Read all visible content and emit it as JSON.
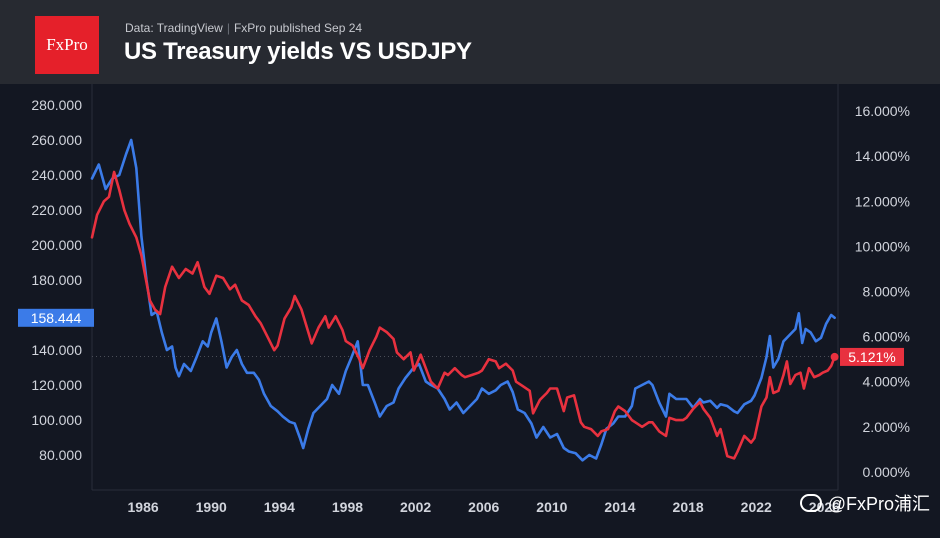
{
  "header": {
    "logo": "FxPro",
    "source": "Data: TradingView",
    "separator": "|",
    "published": "FxPro published Sep 24",
    "title": "US Treasury yields VS USDJPY"
  },
  "watermark": "@FxPro浦汇",
  "colors": {
    "usdjpy": "#3b7be8",
    "yield": "#e8313f",
    "bg": "#131722",
    "header": "#272a31"
  },
  "chart_data": {
    "type": "line",
    "title": "US Treasury yields VS USDJPY",
    "x_tick_labels": [
      "1986",
      "1990",
      "1994",
      "1998",
      "2002",
      "2006",
      "2010",
      "2014",
      "2018",
      "2022",
      "2026"
    ],
    "xlim": [
      1983.0,
      2026.8
    ],
    "left_axis": {
      "ticks": [
        80,
        100,
        120,
        140,
        160,
        180,
        200,
        220,
        240,
        260,
        280
      ],
      "tick_labels": [
        "80.000",
        "100.000",
        "120.000",
        "140.000",
        "160.000",
        "180.000",
        "200.000",
        "220.000",
        "240.000",
        "260.000",
        "280.000"
      ],
      "ylim": [
        60,
        292
      ]
    },
    "right_axis": {
      "ticks": [
        0,
        2,
        4,
        6,
        8,
        10,
        12,
        14,
        16
      ],
      "tick_labels": [
        "0.000%",
        "2.000%",
        "4.000%",
        "6.000%",
        "8.000%",
        "10.000%",
        "12.000%",
        "14.000%",
        "16.000%"
      ],
      "ylim": [
        -0.8,
        17.2
      ]
    },
    "series": [
      {
        "name": "",
        "axis": "left",
        "color": "#3b7be8",
        "last_value_label": "158.444",
        "points": [
          [
            1983.0,
            238
          ],
          [
            1983.4,
            246
          ],
          [
            1983.8,
            232
          ],
          [
            1984.2,
            238
          ],
          [
            1984.6,
            240
          ],
          [
            1985.0,
            252
          ],
          [
            1985.3,
            260
          ],
          [
            1985.6,
            244
          ],
          [
            1985.9,
            205
          ],
          [
            1986.2,
            180
          ],
          [
            1986.5,
            160
          ],
          [
            1986.8,
            162
          ],
          [
            1987.1,
            150
          ],
          [
            1987.4,
            140
          ],
          [
            1987.7,
            142
          ],
          [
            1987.9,
            130
          ],
          [
            1988.1,
            125
          ],
          [
            1988.4,
            132
          ],
          [
            1988.8,
            128
          ],
          [
            1989.1,
            135
          ],
          [
            1989.5,
            145
          ],
          [
            1989.8,
            142
          ],
          [
            1990.0,
            150
          ],
          [
            1990.3,
            158
          ],
          [
            1990.6,
            145
          ],
          [
            1990.9,
            130
          ],
          [
            1991.2,
            136
          ],
          [
            1991.5,
            140
          ],
          [
            1991.8,
            132
          ],
          [
            1992.1,
            127
          ],
          [
            1992.5,
            127
          ],
          [
            1992.8,
            123
          ],
          [
            1993.1,
            115
          ],
          [
            1993.5,
            108
          ],
          [
            1993.9,
            105
          ],
          [
            1994.2,
            102
          ],
          [
            1994.6,
            99
          ],
          [
            1994.9,
            98
          ],
          [
            1995.2,
            90
          ],
          [
            1995.4,
            84
          ],
          [
            1995.7,
            95
          ],
          [
            1996.0,
            104
          ],
          [
            1996.4,
            108
          ],
          [
            1996.8,
            112
          ],
          [
            1997.1,
            120
          ],
          [
            1997.5,
            115
          ],
          [
            1997.9,
            128
          ],
          [
            1998.2,
            135
          ],
          [
            1998.6,
            145
          ],
          [
            1998.9,
            120
          ],
          [
            1999.2,
            120
          ],
          [
            1999.6,
            110
          ],
          [
            1999.9,
            102
          ],
          [
            2000.3,
            108
          ],
          [
            2000.7,
            110
          ],
          [
            2001.0,
            118
          ],
          [
            2001.4,
            124
          ],
          [
            2001.9,
            130
          ],
          [
            2002.2,
            132
          ],
          [
            2002.6,
            122
          ],
          [
            2002.9,
            120
          ],
          [
            2003.3,
            118
          ],
          [
            2003.7,
            112
          ],
          [
            2004.0,
            106
          ],
          [
            2004.4,
            110
          ],
          [
            2004.8,
            104
          ],
          [
            2005.2,
            108
          ],
          [
            2005.6,
            112
          ],
          [
            2005.9,
            118
          ],
          [
            2006.3,
            115
          ],
          [
            2006.7,
            117
          ],
          [
            2007.0,
            120
          ],
          [
            2007.4,
            122
          ],
          [
            2007.7,
            116
          ],
          [
            2008.0,
            106
          ],
          [
            2008.4,
            104
          ],
          [
            2008.8,
            98
          ],
          [
            2009.1,
            90
          ],
          [
            2009.5,
            96
          ],
          [
            2009.9,
            90
          ],
          [
            2010.3,
            92
          ],
          [
            2010.7,
            84
          ],
          [
            2011.0,
            82
          ],
          [
            2011.4,
            81
          ],
          [
            2011.8,
            77
          ],
          [
            2012.2,
            80
          ],
          [
            2012.6,
            78
          ],
          [
            2012.9,
            86
          ],
          [
            2013.2,
            95
          ],
          [
            2013.6,
            98
          ],
          [
            2013.9,
            102
          ],
          [
            2014.3,
            102
          ],
          [
            2014.7,
            108
          ],
          [
            2014.9,
            118
          ],
          [
            2015.3,
            120
          ],
          [
            2015.7,
            122
          ],
          [
            2015.9,
            120
          ],
          [
            2016.3,
            110
          ],
          [
            2016.7,
            102
          ],
          [
            2016.9,
            115
          ],
          [
            2017.3,
            112
          ],
          [
            2017.7,
            112
          ],
          [
            2017.9,
            112
          ],
          [
            2018.3,
            107
          ],
          [
            2018.7,
            112
          ],
          [
            2018.9,
            110
          ],
          [
            2019.3,
            111
          ],
          [
            2019.7,
            107
          ],
          [
            2019.9,
            109
          ],
          [
            2020.3,
            108
          ],
          [
            2020.7,
            105
          ],
          [
            2020.9,
            104
          ],
          [
            2021.3,
            109
          ],
          [
            2021.7,
            111
          ],
          [
            2021.9,
            114
          ],
          [
            2022.3,
            124
          ],
          [
            2022.6,
            136
          ],
          [
            2022.8,
            148
          ],
          [
            2023.0,
            130
          ],
          [
            2023.3,
            135
          ],
          [
            2023.6,
            145
          ],
          [
            2023.9,
            148
          ],
          [
            2024.3,
            152
          ],
          [
            2024.5,
            161
          ],
          [
            2024.7,
            144
          ],
          [
            2024.9,
            152
          ],
          [
            2025.2,
            150
          ],
          [
            2025.5,
            145
          ],
          [
            2025.8,
            147
          ],
          [
            2026.1,
            155
          ],
          [
            2026.4,
            160
          ],
          [
            2026.6,
            158.4
          ]
        ]
      },
      {
        "name": "",
        "axis": "right",
        "color": "#e8313f",
        "last_value_label": "5.121%",
        "points": [
          [
            1983.0,
            10.4
          ],
          [
            1983.3,
            11.4
          ],
          [
            1983.7,
            12.0
          ],
          [
            1984.0,
            12.2
          ],
          [
            1984.3,
            13.3
          ],
          [
            1984.6,
            12.5
          ],
          [
            1984.9,
            11.6
          ],
          [
            1985.2,
            11.0
          ],
          [
            1985.6,
            10.4
          ],
          [
            1985.9,
            9.6
          ],
          [
            1986.1,
            8.8
          ],
          [
            1986.4,
            7.6
          ],
          [
            1986.7,
            7.2
          ],
          [
            1987.0,
            7.0
          ],
          [
            1987.3,
            8.2
          ],
          [
            1987.7,
            9.1
          ],
          [
            1988.1,
            8.6
          ],
          [
            1988.5,
            9.0
          ],
          [
            1988.9,
            8.8
          ],
          [
            1989.2,
            9.3
          ],
          [
            1989.6,
            8.2
          ],
          [
            1989.9,
            7.9
          ],
          [
            1990.3,
            8.7
          ],
          [
            1990.7,
            8.6
          ],
          [
            1991.1,
            8.1
          ],
          [
            1991.4,
            8.3
          ],
          [
            1991.8,
            7.6
          ],
          [
            1992.2,
            7.4
          ],
          [
            1992.6,
            6.9
          ],
          [
            1992.9,
            6.6
          ],
          [
            1993.3,
            6.0
          ],
          [
            1993.7,
            5.4
          ],
          [
            1993.9,
            5.6
          ],
          [
            1994.3,
            6.8
          ],
          [
            1994.7,
            7.3
          ],
          [
            1994.9,
            7.8
          ],
          [
            1995.3,
            7.2
          ],
          [
            1995.7,
            6.2
          ],
          [
            1995.9,
            5.7
          ],
          [
            1996.3,
            6.4
          ],
          [
            1996.7,
            6.9
          ],
          [
            1996.9,
            6.4
          ],
          [
            1997.3,
            6.9
          ],
          [
            1997.7,
            6.3
          ],
          [
            1997.9,
            5.8
          ],
          [
            1998.3,
            5.6
          ],
          [
            1998.7,
            5.0
          ],
          [
            1998.9,
            4.6
          ],
          [
            1999.3,
            5.4
          ],
          [
            1999.7,
            6.0
          ],
          [
            1999.9,
            6.4
          ],
          [
            2000.3,
            6.2
          ],
          [
            2000.7,
            5.9
          ],
          [
            2000.9,
            5.3
          ],
          [
            2001.3,
            5.0
          ],
          [
            2001.7,
            5.3
          ],
          [
            2001.9,
            4.5
          ],
          [
            2002.3,
            5.2
          ],
          [
            2002.7,
            4.4
          ],
          [
            2002.9,
            4.0
          ],
          [
            2003.3,
            3.7
          ],
          [
            2003.7,
            4.4
          ],
          [
            2003.9,
            4.3
          ],
          [
            2004.3,
            4.6
          ],
          [
            2004.7,
            4.3
          ],
          [
            2004.9,
            4.2
          ],
          [
            2005.3,
            4.3
          ],
          [
            2005.7,
            4.4
          ],
          [
            2005.9,
            4.5
          ],
          [
            2006.3,
            5.0
          ],
          [
            2006.7,
            4.9
          ],
          [
            2006.9,
            4.6
          ],
          [
            2007.3,
            4.8
          ],
          [
            2007.7,
            4.5
          ],
          [
            2007.9,
            4.0
          ],
          [
            2008.3,
            3.8
          ],
          [
            2008.7,
            3.6
          ],
          [
            2008.9,
            2.6
          ],
          [
            2009.3,
            3.2
          ],
          [
            2009.7,
            3.5
          ],
          [
            2009.9,
            3.7
          ],
          [
            2010.3,
            3.7
          ],
          [
            2010.7,
            2.7
          ],
          [
            2010.9,
            3.3
          ],
          [
            2011.3,
            3.4
          ],
          [
            2011.7,
            2.2
          ],
          [
            2011.9,
            2.0
          ],
          [
            2012.3,
            1.9
          ],
          [
            2012.7,
            1.6
          ],
          [
            2012.9,
            1.8
          ],
          [
            2013.3,
            1.9
          ],
          [
            2013.7,
            2.7
          ],
          [
            2013.9,
            2.9
          ],
          [
            2014.3,
            2.7
          ],
          [
            2014.7,
            2.3
          ],
          [
            2014.9,
            2.2
          ],
          [
            2015.3,
            2.0
          ],
          [
            2015.7,
            2.2
          ],
          [
            2015.9,
            2.2
          ],
          [
            2016.3,
            1.8
          ],
          [
            2016.7,
            1.6
          ],
          [
            2016.9,
            2.4
          ],
          [
            2017.3,
            2.3
          ],
          [
            2017.7,
            2.3
          ],
          [
            2017.9,
            2.4
          ],
          [
            2018.3,
            2.8
          ],
          [
            2018.7,
            3.1
          ],
          [
            2018.9,
            2.8
          ],
          [
            2019.3,
            2.4
          ],
          [
            2019.7,
            1.6
          ],
          [
            2019.9,
            1.9
          ],
          [
            2020.3,
            0.7
          ],
          [
            2020.7,
            0.6
          ],
          [
            2020.9,
            0.9
          ],
          [
            2021.3,
            1.6
          ],
          [
            2021.7,
            1.3
          ],
          [
            2021.9,
            1.5
          ],
          [
            2022.3,
            2.9
          ],
          [
            2022.6,
            3.3
          ],
          [
            2022.8,
            4.2
          ],
          [
            2023.0,
            3.5
          ],
          [
            2023.3,
            3.6
          ],
          [
            2023.6,
            4.3
          ],
          [
            2023.8,
            4.9
          ],
          [
            2024.0,
            3.9
          ],
          [
            2024.3,
            4.3
          ],
          [
            2024.6,
            4.4
          ],
          [
            2024.8,
            3.7
          ],
          [
            2025.1,
            4.6
          ],
          [
            2025.4,
            4.2
          ],
          [
            2025.7,
            4.3
          ],
          [
            2025.9,
            4.4
          ],
          [
            2026.2,
            4.5
          ],
          [
            2026.4,
            4.7
          ],
          [
            2026.6,
            5.1
          ]
        ]
      }
    ],
    "grid": false,
    "reference_line": {
      "axis": "right",
      "value": 5.121,
      "style": "dotted"
    }
  }
}
